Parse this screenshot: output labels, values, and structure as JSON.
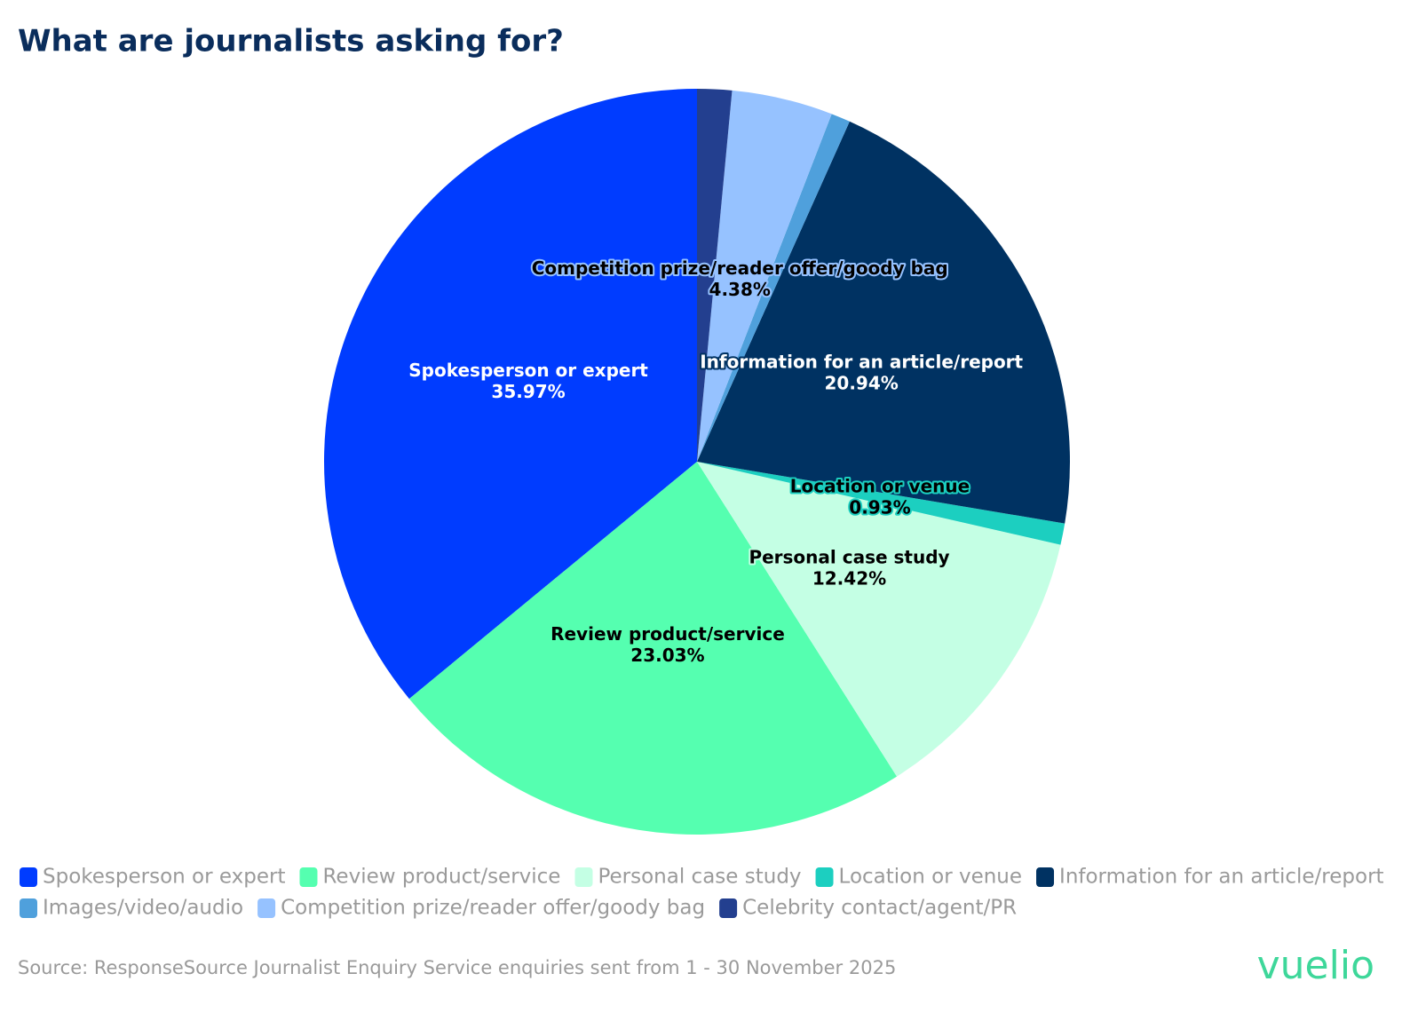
{
  "chart_data": {
    "type": "pie",
    "title": "What are journalists asking for?",
    "categories": [
      "Spokesperson or expert",
      "Review product/service",
      "Personal case study",
      "Location or venue",
      "Information for an article/report",
      "Images/video/audio",
      "Competition prize/reader offer/goody bag",
      "Celebrity contact/agent/PR"
    ],
    "values": [
      35.97,
      23.03,
      12.42,
      0.93,
      20.94,
      0.83,
      4.38,
      1.5
    ],
    "value_labels": [
      "35.97%",
      "23.03%",
      "12.42%",
      "0.93%",
      "20.94%",
      null,
      "4.38%",
      null
    ],
    "colors": [
      "#003cff",
      "#55ffb0",
      "#c4ffe4",
      "#1ccfc0",
      "#003262",
      "#4fa0dc",
      "#96c2ff",
      "#233f8f"
    ],
    "direction": "counterclockwise",
    "source": "Source: ResponseSource Journalist Enquiry Service enquiries sent from 1 - 30 November 2025",
    "logo": "vuelio"
  }
}
